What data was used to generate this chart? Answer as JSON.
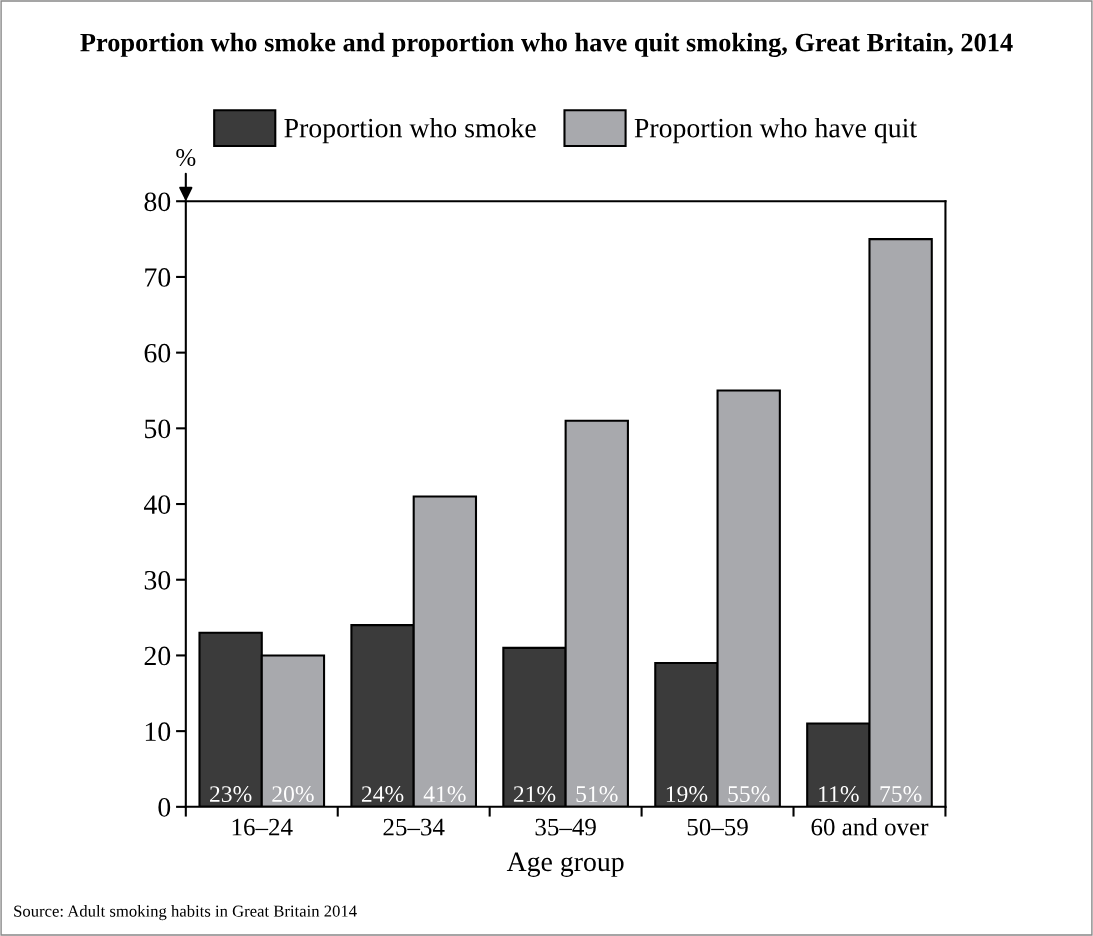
{
  "chart_data": {
    "type": "bar",
    "title": "Proportion who smoke and proportion who have quit smoking, Great Britain, 2014",
    "xlabel": "Age group",
    "ylabel": "%",
    "categories": [
      "16–24",
      "25–34",
      "35–49",
      "50–59",
      "60 and over"
    ],
    "series": [
      {
        "name": "Proportion who smoke",
        "color": "#3b3b3b",
        "values": [
          23,
          24,
          21,
          19,
          11
        ],
        "value_labels": [
          "23%",
          "24%",
          "21%",
          "19%",
          "11%"
        ]
      },
      {
        "name": "Proportion who have quit",
        "color": "#a8a9ad",
        "values": [
          20,
          41,
          51,
          55,
          75
        ],
        "value_labels": [
          "20%",
          "41%",
          "51%",
          "55%",
          "75%"
        ]
      }
    ],
    "ylim": [
      0,
      80
    ],
    "yticks": [
      0,
      10,
      20,
      30,
      40,
      50,
      60,
      70,
      80
    ],
    "grid": false,
    "legend": "top",
    "annotations": [
      "Source: Adult smoking habits in Great Britain 2014"
    ]
  }
}
